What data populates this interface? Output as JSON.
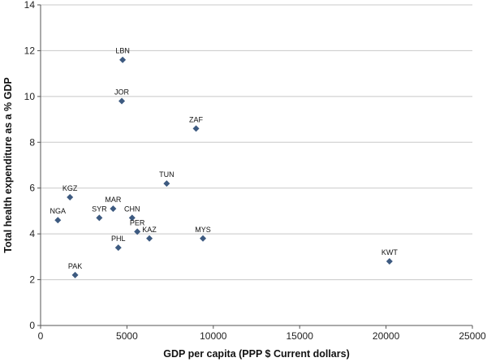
{
  "chart_data": {
    "type": "scatter",
    "title": "",
    "xlabel": "GDP per capita (PPP $ Current dollars)",
    "ylabel": "Total health expenditure as a % GDP",
    "xlim": [
      0,
      25000
    ],
    "ylim": [
      0,
      14
    ],
    "xticks": [
      0,
      5000,
      10000,
      15000,
      20000,
      25000
    ],
    "yticks": [
      0,
      2,
      4,
      6,
      8,
      10,
      12,
      14
    ],
    "grid": "horizontal",
    "legend": "none",
    "colors": {
      "marker": "#3d5a80",
      "grid": "#c8c8c8",
      "axis": "#555555"
    },
    "points": [
      {
        "label": "LBN",
        "x": 4750,
        "y": 11.6
      },
      {
        "label": "JOR",
        "x": 4700,
        "y": 9.8
      },
      {
        "label": "ZAF",
        "x": 9000,
        "y": 8.6
      },
      {
        "label": "TUN",
        "x": 7300,
        "y": 6.2
      },
      {
        "label": "KGZ",
        "x": 1700,
        "y": 5.6
      },
      {
        "label": "MAR",
        "x": 4200,
        "y": 5.1
      },
      {
        "label": "SYR",
        "x": 3400,
        "y": 4.7
      },
      {
        "label": "NGA",
        "x": 1000,
        "y": 4.6
      },
      {
        "label": "CHN",
        "x": 5300,
        "y": 4.7
      },
      {
        "label": "PER",
        "x": 5600,
        "y": 4.1
      },
      {
        "label": "KAZ",
        "x": 6300,
        "y": 3.8
      },
      {
        "label": "MYS",
        "x": 9400,
        "y": 3.8
      },
      {
        "label": "PHL",
        "x": 4500,
        "y": 3.4
      },
      {
        "label": "PAK",
        "x": 2000,
        "y": 2.2
      },
      {
        "label": "KWT",
        "x": 20200,
        "y": 2.8
      }
    ]
  }
}
